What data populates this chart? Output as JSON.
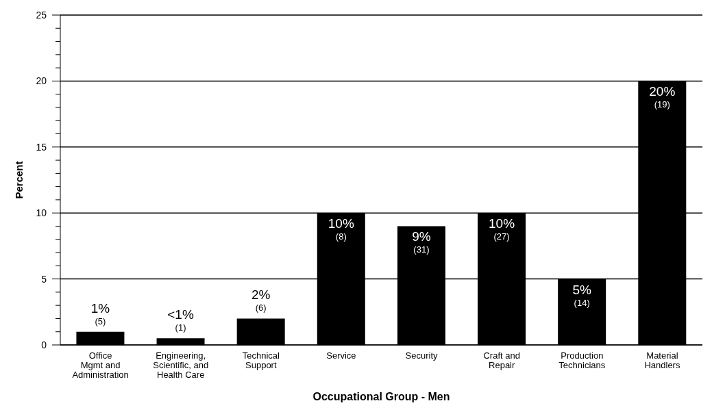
{
  "chart_data": {
    "type": "bar",
    "xlabel": "Occupational Group - Men",
    "ylabel": "Percent",
    "categories": [
      "Office\nMgmt and\nAdministration",
      "Engineering,\nScientific, and\nHealth Care",
      "Technical\nSupport",
      "Service",
      "Security",
      "Craft and\nRepair",
      "Production\nTechnicians",
      "Material\nHandlers"
    ],
    "values": [
      1,
      0.5,
      2,
      10,
      9,
      10,
      5,
      20
    ],
    "value_labels": [
      "1%\n(5)",
      "<1%\n(1)",
      "2%\n(6)",
      "10%\n(8)",
      "9%\n(31)",
      "10%\n(27)",
      "5%\n(14)",
      "20%\n(19)"
    ],
    "color": "#000000",
    "ylim": [
      0,
      25
    ],
    "yticks": [
      0,
      {
        "value": 1,
        "label": null
      },
      {
        "value": 2,
        "label": null
      },
      {
        "value": 3,
        "label": null
      },
      {
        "value": 4,
        "label": null
      },
      5,
      {
        "value": 6,
        "label": null
      },
      {
        "value": 7,
        "label": null
      },
      {
        "value": 8,
        "label": null
      },
      {
        "value": 9,
        "label": null
      },
      10,
      {
        "value": 11,
        "label": null
      },
      {
        "value": 12,
        "label": null
      },
      {
        "value": 13,
        "label": null
      },
      {
        "value": 14,
        "label": null
      },
      15,
      {
        "value": 16,
        "label": null
      },
      {
        "value": 17,
        "label": null
      },
      {
        "value": 18,
        "label": null
      },
      {
        "value": 19,
        "label": null
      },
      20,
      {
        "value": 21,
        "label": null
      },
      {
        "value": 22,
        "label": null
      },
      {
        "value": 23,
        "label": null
      },
      {
        "value": 24,
        "label": null
      },
      25
    ],
    "grid": "y"
  }
}
